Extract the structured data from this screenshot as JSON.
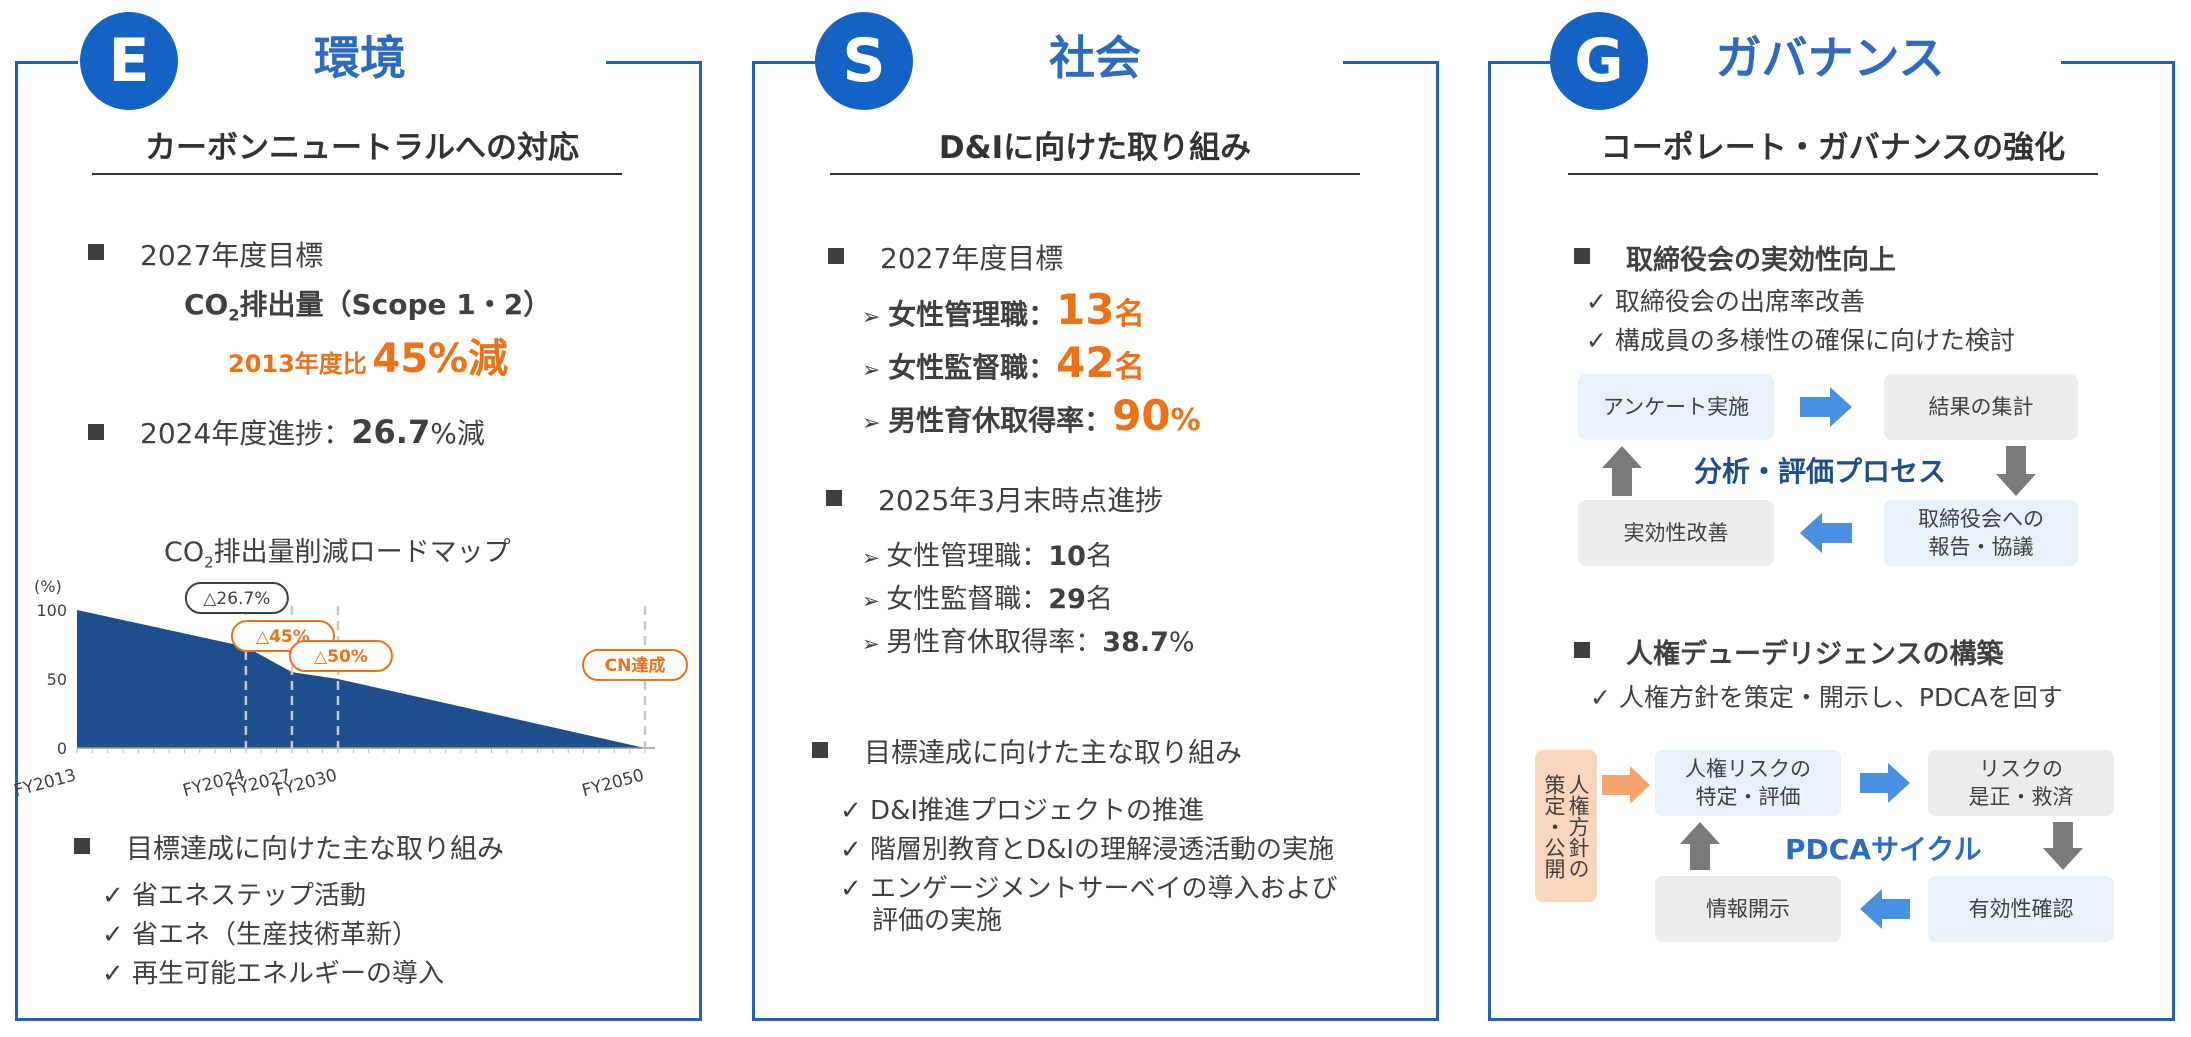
{
  "e": {
    "letter": "E",
    "title": "環境",
    "subtitle": "カーボンニュートラルへの対応",
    "target_head": "2027年度目標",
    "co2_prefix": "CO",
    "co2_sub": "2",
    "co2_rest": "排出量（Scope 1・2）",
    "target_base": "2013年度比",
    "target_value": "45%減",
    "progress_label": "2024年度進捗：",
    "progress_value": "26.7",
    "progress_unit": "%減",
    "chart_title_prefix": "CO",
    "chart_title_sub": "2",
    "chart_title_rest": "排出量削減ロードマップ",
    "initiatives_head": "目標達成に向けた主な取り組み",
    "initiatives": [
      "✓ 省エネステップ活動",
      "✓ 省エネ（生産技術革新）",
      "✓ 再生可能エネルギーの導入"
    ]
  },
  "chart_data": {
    "type": "area",
    "x": [
      "FY2013",
      "FY2024",
      "FY2027",
      "FY2030",
      "FY2050"
    ],
    "x_years": [
      2013,
      2024,
      2027,
      2030,
      2050
    ],
    "values": [
      100,
      73.3,
      55,
      50,
      0
    ],
    "ylabel": "(%)",
    "yticks": [
      0,
      50,
      100
    ],
    "ylim": [
      0,
      100
    ],
    "annotations": [
      "△26.7%",
      "△45%",
      "△50%",
      "CN達成"
    ],
    "color": "#1f4e8c"
  },
  "s": {
    "letter": "S",
    "title": "社会",
    "subtitle": "D&Iに向けた取り組み",
    "target_head": "2027年度目標",
    "targets": [
      {
        "label": "女性管理職：",
        "value": "13",
        "unit": "名"
      },
      {
        "label": "女性監督職：",
        "value": "42",
        "unit": "名"
      },
      {
        "label": "男性育休取得率：",
        "value": "90",
        "unit": "%"
      }
    ],
    "progress_head": "2025年3月末時点進捗",
    "progress": [
      {
        "label": "女性管理職：",
        "value": "10",
        "unit": "名"
      },
      {
        "label": "女性監督職：",
        "value": "29",
        "unit": "名"
      },
      {
        "label": "男性育休取得率：",
        "value": "38.7",
        "unit": "%"
      }
    ],
    "initiatives_head": "目標達成に向けた主な取り組み",
    "initiatives": [
      "✓ D&I推進プロジェクトの推進",
      "✓ 階層別教育とD&Iの理解浸透活動の実施",
      "✓ エンゲージメントサーベイの導入および",
      "評価の実施"
    ]
  },
  "g": {
    "letter": "G",
    "title": "ガバナンス",
    "subtitle": "コーポレート・ガバナンスの強化",
    "board_head": "取締役会の実効性向上",
    "board_items": [
      "✓ 取締役会の出席率改善",
      "✓ 構成員の多様性の確保に向けた検討"
    ],
    "cycle1": {
      "center": "分析・評価プロセス",
      "tl": "アンケート実施",
      "tr": "結果の集計",
      "br_1": "取締役会への",
      "br_2": "報告・協議",
      "bl": "実効性改善"
    },
    "hr_head": "人権デューデリジェンスの構築",
    "hr_items": [
      "✓ 人権方針を策定・開示し、PDCAを回す"
    ],
    "cycle2": {
      "side_col1": "人権方針の",
      "side_col2": "策定・公開",
      "center": "PDCAサイクル",
      "tl_1": "人権リスクの",
      "tl_2": "特定・評価",
      "tr_1": "リスクの",
      "tr_2": "是正・救済",
      "br": "有効性確認",
      "bl": "情報開示"
    }
  },
  "colors": {
    "brand_blue": "#1463c4",
    "accent_orange": "#ed7117",
    "chart_fill": "#1f4e8c"
  }
}
